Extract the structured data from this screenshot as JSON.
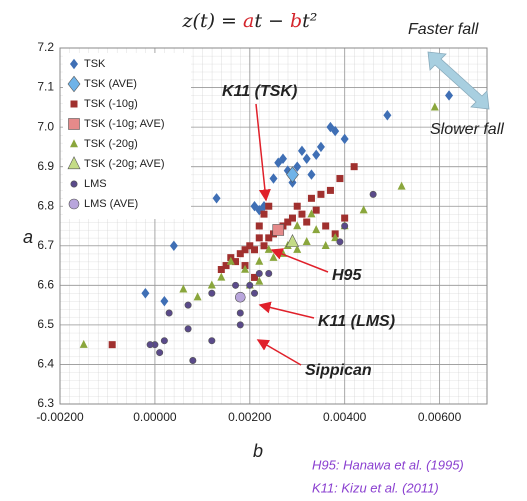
{
  "chart_data": {
    "type": "scatter",
    "title": {
      "parts": [
        "z(t) = ",
        "a",
        "t − ",
        "b",
        "t²"
      ],
      "highlight_color": "#d4242b"
    },
    "x_label": "b",
    "y_label": "a",
    "xlim": [
      -0.002,
      0.007
    ],
    "ylim": [
      6.3,
      7.2
    ],
    "xticks": [
      {
        "value": -0.002,
        "label": "-0.00200"
      },
      {
        "value": 0,
        "label": "0.00000"
      },
      {
        "value": 0.002,
        "label": "0.00200"
      },
      {
        "value": 0.004,
        "label": "0.00400"
      },
      {
        "value": 0.006,
        "label": "0.00600"
      }
    ],
    "yticks": [
      6.3,
      6.4,
      6.5,
      6.6,
      6.7,
      6.8,
      6.9,
      {
        "value": 7,
        "label": "7.0"
      },
      7.1,
      7.2
    ],
    "grid": true,
    "legend": "upper left",
    "series": [
      {
        "name": "TSK",
        "color": "#3f6fb5",
        "marker": "diamond",
        "marker_size": 4,
        "x": [
          0.0062,
          0.0049,
          0.0038,
          0.0037,
          0.004,
          0.0035,
          0.0031,
          0.0032,
          0.0027,
          0.0026,
          0.0028,
          0.003,
          0.0025,
          0.0013,
          0.0023,
          0.0021,
          0.0022,
          0.0004,
          -0.0002,
          0.0002,
          0.0034,
          0.0029,
          0.0033
        ],
        "values": [
          7.08,
          7.03,
          6.99,
          7.0,
          6.97,
          6.95,
          6.94,
          6.92,
          6.92,
          6.91,
          6.89,
          6.9,
          6.87,
          6.82,
          6.8,
          6.8,
          6.79,
          6.7,
          6.58,
          6.56,
          6.93,
          6.86,
          6.88
        ]
      },
      {
        "name": "TSK (AVE)",
        "color": "#6fb3e8",
        "marker": "diamond",
        "marker_size": 6,
        "x": [
          0.0029
        ],
        "values": [
          6.88
        ]
      },
      {
        "name": "TSK (-10g)",
        "color": "#a0302e",
        "marker": "square",
        "marker_size": 3.5,
        "x": [
          0.0042,
          0.0039,
          0.0037,
          0.0035,
          0.0033,
          0.003,
          0.0031,
          0.0029,
          0.0028,
          0.0027,
          0.0026,
          0.0025,
          0.0024,
          0.0022,
          0.0023,
          0.002,
          0.0019,
          0.0021,
          0.0018,
          0.0017,
          0.0015,
          0.0016,
          0.0019,
          0.0014,
          0.0022,
          0.0023,
          0.0024,
          0.0032,
          0.0034,
          0.0036,
          0.0038,
          0.004,
          -0.0009,
          0.0021
        ],
        "values": [
          6.9,
          6.87,
          6.84,
          6.83,
          6.82,
          6.8,
          6.78,
          6.77,
          6.76,
          6.75,
          6.74,
          6.73,
          6.72,
          6.72,
          6.7,
          6.7,
          6.69,
          6.69,
          6.68,
          6.66,
          6.65,
          6.67,
          6.65,
          6.64,
          6.75,
          6.78,
          6.8,
          6.76,
          6.79,
          6.75,
          6.73,
          6.77,
          6.45,
          6.62
        ]
      },
      {
        "name": "TSK (-10g; AVE)",
        "color": "#e58a8a",
        "marker": "square",
        "marker_size": 5.5,
        "x": [
          0.0026
        ],
        "values": [
          6.74
        ]
      },
      {
        "name": "TSK (-20g)",
        "color": "#8aa63c",
        "marker": "triangle",
        "marker_size": 4,
        "x": [
          0.0059,
          0.0052,
          0.0044,
          0.004,
          0.0038,
          0.0036,
          0.0034,
          0.0032,
          0.003,
          0.0028,
          0.0027,
          0.0025,
          0.0024,
          0.0022,
          0.0019,
          0.0016,
          0.0014,
          0.0012,
          0.0009,
          0.0006,
          -0.0015,
          0.0022,
          0.002,
          0.003,
          0.0033
        ],
        "values": [
          7.05,
          6.85,
          6.79,
          6.75,
          6.72,
          6.7,
          6.74,
          6.71,
          6.69,
          6.7,
          6.68,
          6.67,
          6.69,
          6.66,
          6.64,
          6.66,
          6.62,
          6.6,
          6.57,
          6.59,
          6.45,
          6.61,
          6.6,
          6.75,
          6.78
        ]
      },
      {
        "name": "TSK (-20g; AVE)",
        "color": "#c4dc86",
        "marker": "triangle",
        "marker_size": 6,
        "x": [
          0.0029
        ],
        "values": [
          6.71
        ]
      },
      {
        "name": "LMS",
        "color": "#5a4a8a",
        "marker": "circle",
        "marker_size": 3.2,
        "x": [
          0.0046,
          0.0039,
          0.004,
          0.0024,
          0.0022,
          0.002,
          0.0017,
          0.0018,
          0.0012,
          0.0007,
          0.0003,
          0.0002,
          0.0,
          0.0001,
          -0.0001,
          0.0008,
          0.0012,
          0.0007,
          0.0018,
          0.0021
        ],
        "values": [
          6.83,
          6.71,
          6.75,
          6.63,
          6.63,
          6.6,
          6.6,
          6.5,
          6.58,
          6.55,
          6.53,
          6.46,
          6.45,
          6.43,
          6.45,
          6.41,
          6.46,
          6.49,
          6.53,
          6.58
        ]
      },
      {
        "name": "LMS (AVE)",
        "color": "#b9a6dc",
        "marker": "circle",
        "marker_size": 5,
        "x": [
          0.0018
        ],
        "values": [
          6.57
        ]
      }
    ],
    "annotations": [
      "K11 (TSK)",
      "H95",
      "K11 (LMS)",
      "Sippican",
      "Faster fall",
      "Slower fall"
    ],
    "notes": [
      "H95: Hanawa et al. (1995)",
      "K11: Kizu et al. (2011)"
    ]
  }
}
